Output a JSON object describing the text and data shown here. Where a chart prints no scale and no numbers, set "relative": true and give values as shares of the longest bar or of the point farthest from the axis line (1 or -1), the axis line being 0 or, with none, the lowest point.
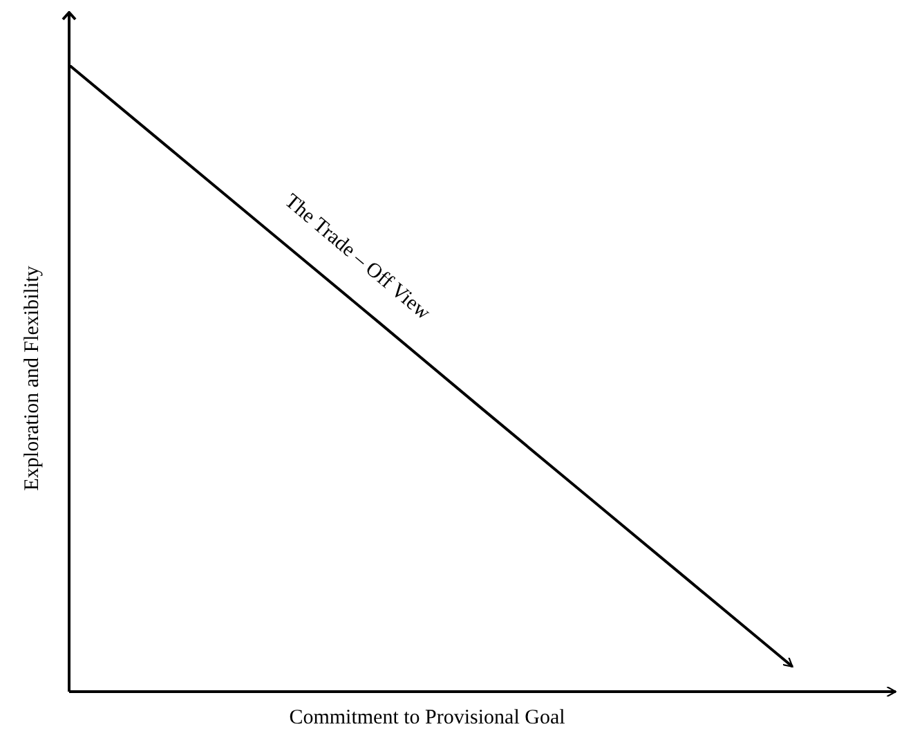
{
  "chart_data": {
    "type": "line",
    "relative": true,
    "xlabel": "Commitment to Provisional Goal",
    "ylabel": "Exploration and Flexibility",
    "categories": [
      null,
      null,
      null,
      null,
      null,
      null,
      null,
      null,
      null
    ],
    "series": [
      {
        "color": "#000000",
        "values": [
          1,
          0.863,
          0.726,
          0.589,
          0.451,
          0.314,
          0.177,
          0.04,
          null
        ]
      }
    ],
    "annotations": [
      "The Trade – Off View"
    ]
  }
}
